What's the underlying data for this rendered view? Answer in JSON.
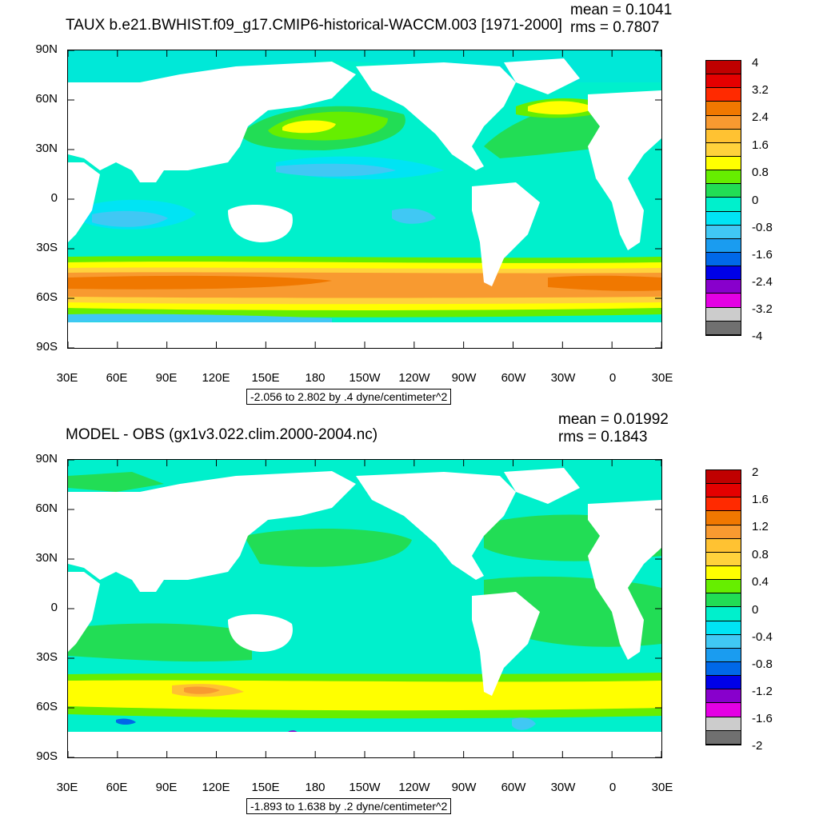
{
  "panels": [
    {
      "title": "TAUX b.e21.BWHIST.f09_g17.CMIP6-historical-WACCM.003 [1971-2000]",
      "mean": "mean = 0.1041",
      "rms": "rms = 0.7807",
      "range": "-2.056 to 2.802 by .4 dyne/centimeter^2",
      "lat_labels": [
        "90N",
        "60N",
        "30N",
        "0",
        "30S",
        "60S",
        "90S"
      ],
      "lon_labels": [
        "30E",
        "60E",
        "90E",
        "120E",
        "150E",
        "180",
        "150W",
        "120W",
        "90W",
        "60W",
        "30W",
        "0",
        "30E"
      ],
      "colorbar_labels": [
        "4",
        "3.2",
        "2.4",
        "1.6",
        "0.8",
        "0",
        "-0.8",
        "-1.6",
        "-2.4",
        "-3.2",
        "-4"
      ],
      "colorbar_colors": [
        "#c00000",
        "#e40000",
        "#ff2a00",
        "#f07800",
        "#f89a30",
        "#ffc232",
        "#ffd23c",
        "#ffff00",
        "#66ee00",
        "#22dd55",
        "#00f0cc",
        "#00e4f4",
        "#40c8f4",
        "#1a9cf0",
        "#0068e8",
        "#0000e8",
        "#8800cc",
        "#e400e4",
        "#cccccc",
        "#707070"
      ]
    },
    {
      "title": "MODEL - OBS (gx1v3.022.clim.2000-2004.nc)",
      "mean": "mean = 0.01992",
      "rms": "rms = 0.1843",
      "range": "-1.893 to 1.638 by .2 dyne/centimeter^2",
      "lat_labels": [
        "90N",
        "60N",
        "30N",
        "0",
        "30S",
        "60S",
        "90S"
      ],
      "lon_labels": [
        "30E",
        "60E",
        "90E",
        "120E",
        "150E",
        "180",
        "150W",
        "120W",
        "90W",
        "60W",
        "30W",
        "0",
        "30E"
      ],
      "colorbar_labels": [
        "2",
        "1.6",
        "1.2",
        "0.8",
        "0.4",
        "0",
        "-0.4",
        "-0.8",
        "-1.2",
        "-1.6",
        "-2"
      ],
      "colorbar_colors": [
        "#c00000",
        "#e40000",
        "#ff2a00",
        "#f07800",
        "#f89a30",
        "#ffc232",
        "#ffd23c",
        "#ffff00",
        "#66ee00",
        "#22dd55",
        "#00f0cc",
        "#00e4f4",
        "#40c8f4",
        "#1a9cf0",
        "#0068e8",
        "#0000e8",
        "#8800cc",
        "#e400e4",
        "#cccccc",
        "#707070"
      ]
    }
  ]
}
